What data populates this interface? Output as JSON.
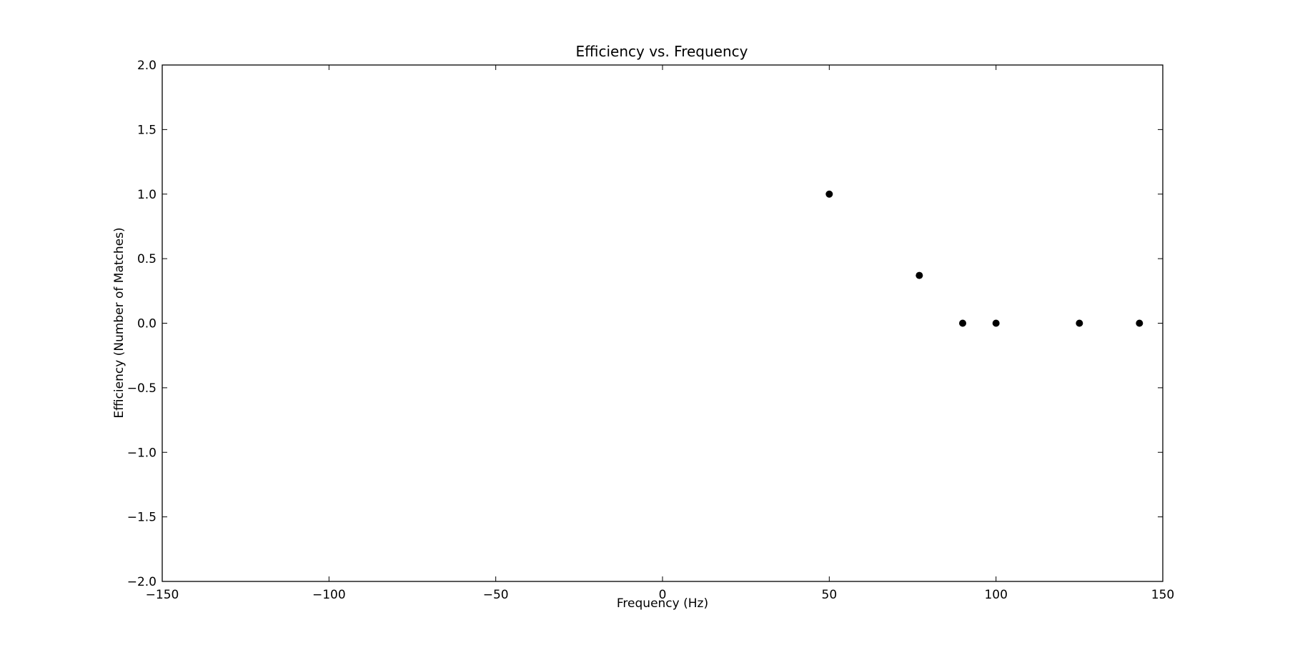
{
  "chart_data": {
    "type": "scatter",
    "title": "Efficiency vs. Frequency",
    "xlabel": "Frequency (Hz)",
    "ylabel": "Efficiency (Number of Matches)",
    "xlim": [
      -150,
      150
    ],
    "ylim": [
      -2.0,
      2.0
    ],
    "x_ticks": [
      -150,
      -100,
      -50,
      0,
      50,
      100,
      150
    ],
    "x_tick_labels": [
      "−150",
      "−100",
      "−50",
      "0",
      "50",
      "100",
      "150"
    ],
    "y_ticks": [
      -2.0,
      -1.5,
      -1.0,
      -0.5,
      0.0,
      0.5,
      1.0,
      1.5,
      2.0
    ],
    "y_tick_labels": [
      "−2.0",
      "−1.5",
      "−1.0",
      "−0.5",
      "0.0",
      "0.5",
      "1.0",
      "1.5",
      "2.0"
    ],
    "grid": false,
    "marker_color": "#000000",
    "points": [
      {
        "x": 50,
        "y": 1.0
      },
      {
        "x": 77,
        "y": 0.37
      },
      {
        "x": 90,
        "y": 0.0
      },
      {
        "x": 100,
        "y": 0.0
      },
      {
        "x": 125,
        "y": 0.0
      },
      {
        "x": 143,
        "y": 0.0
      }
    ]
  }
}
